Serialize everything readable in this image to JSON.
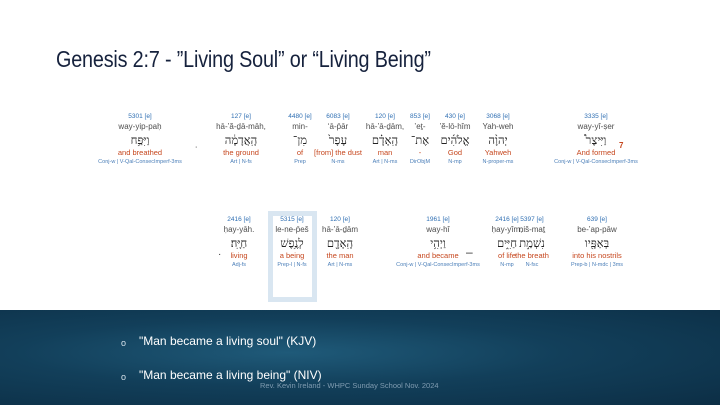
{
  "title": "Genesis 2:7 - ”Living Soul” or “Living Being”",
  "verse_number": "7",
  "row1": [
    {
      "strong": "3335 [e]",
      "translit": "way-yî-ṣer",
      "hebrew": "וַיִּיצֶר֩",
      "gloss": "And formed",
      "morph": "Conj-w | V-Qal-ConsecImperf-3ms"
    },
    {
      "strong": "3068 [e]",
      "translit": "Yah-weh",
      "hebrew": "יְהוָ֨ה",
      "gloss": "Yahweh",
      "morph": "N-proper-ms"
    },
    {
      "strong": "430 [e]",
      "translit": "’ĕ-lō-hîm",
      "hebrew": "אֱלֹהִ֜ים",
      "gloss": "God",
      "morph": "N-mp"
    },
    {
      "strong": "853 [e]",
      "translit": "’eṯ-",
      "hebrew": "אֶת־",
      "gloss": "-",
      "morph": "DirObjM"
    },
    {
      "strong": "120 [e]",
      "translit": "hā-’ā-ḏām,",
      "hebrew": "הָֽאָדָ֗ם",
      "gloss": "man",
      "morph": "Art | N-ms"
    },
    {
      "strong": "6083 [e]",
      "translit": "‘ā-p̄ār",
      "hebrew": "עָפָר֙",
      "gloss": "[from] the dust",
      "morph": "N-ms"
    },
    {
      "strong": "4480 [e]",
      "translit": "min-",
      "hebrew": "מִן־",
      "gloss": "of",
      "morph": "Prep"
    },
    {
      "strong": "127 [e]",
      "translit": "hā-’ă-ḏā-māh,",
      "hebrew": "הָֽאֲדָמָ֔ה",
      "gloss": "the ground",
      "morph": "Art | N-fs"
    },
    {
      "strong": "5301 [e]",
      "translit": "way-yip-paḥ",
      "hebrew": "וַיִּפַּ֥ח",
      "gloss": "and breathed",
      "morph": "Conj-w | V-Qal-ConsecImperf-3ms"
    }
  ],
  "row2": [
    {
      "strong": "639 [e]",
      "translit": "be-’ap-pāw",
      "hebrew": "בְּאַפָּ֖יו",
      "gloss": "into his nostrils",
      "morph": "Prep-b | N-mdc | 3ms"
    },
    {
      "strong": "5397 [e]",
      "translit": "niš-maṯ",
      "hebrew": "נִשְׁמַ֣ת",
      "gloss": "the breath",
      "morph": "N-fsc"
    },
    {
      "strong": "2416 [e]",
      "translit": "ḥay-yîm;",
      "hebrew": "חַיִּ֑ים",
      "gloss": "of life",
      "morph": "N-mp"
    },
    {
      "strong": "1961 [e]",
      "translit": "way-hî",
      "hebrew": "וַיְהִ֥י",
      "gloss": "and became",
      "morph": "Conj-w | V-Qal-ConsecImperf-3ms"
    },
    {
      "strong": "120 [e]",
      "translit": "hā-’ā-ḏām",
      "hebrew": "הָֽאָדָ֖ם",
      "gloss": "the man",
      "morph": "Art | N-ms"
    },
    {
      "strong": "5315 [e]",
      "translit": "le-ne-p̄eš",
      "hebrew": "לְנֶ֥פֶשׁ",
      "gloss": "a being",
      "morph": "Prep-l | N-fs"
    },
    {
      "strong": "2416 [e]",
      "translit": "ḥay-yāh.",
      "hebrew": "חַיָּֽה׃",
      "gloss": "living",
      "morph": "Adj-fs"
    }
  ],
  "lines": [
    "\"Man became a living soul\" (KJV)",
    "\"Man became a living being\" (NIV)"
  ],
  "bullet_glyph": "o",
  "credit": "Rev. Kevin Ireland - WHPC Sunday School Nov. 2024",
  "colors": {
    "title": "#16223d",
    "gloss": "#c6471e",
    "strong": "#2f6fb3",
    "band": "#123f5a"
  }
}
